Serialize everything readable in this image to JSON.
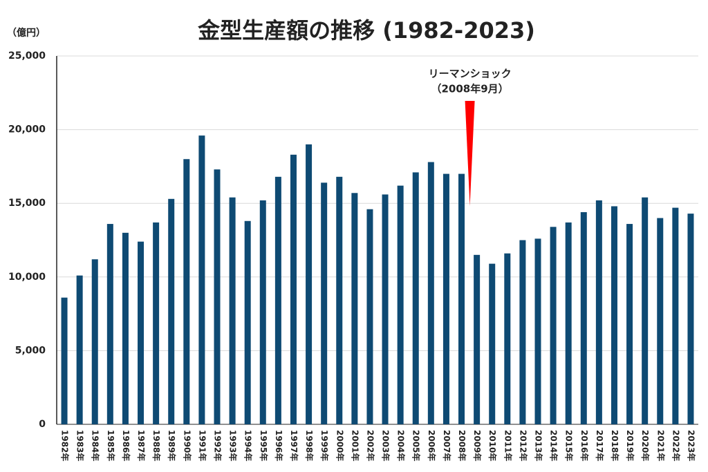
{
  "chart_data": {
    "type": "bar",
    "title": "金型生産額の推移 (1982-2023)",
    "y_label": "（億円）",
    "annotation": [
      "リーマンショック",
      "（2008年9月）"
    ],
    "annotation_color": "#ff0000",
    "categories": [
      "1982年",
      "1983年",
      "1984年",
      "1985年",
      "1986年",
      "1987年",
      "1988年",
      "1989年",
      "1990年",
      "1991年",
      "1992年",
      "1993年",
      "1994年",
      "1995年",
      "1996年",
      "1997年",
      "1998年",
      "1999年",
      "2000年",
      "2001年",
      "2002年",
      "2003年",
      "2004年",
      "2005年",
      "2006年",
      "2007年",
      "2008年",
      "2009年",
      "2010年",
      "2011年",
      "2012年",
      "2013年",
      "2014年",
      "2015年",
      "2016年",
      "2017年",
      "2018年",
      "2019年",
      "2020年",
      "2021年",
      "2022年",
      "2023年"
    ],
    "values": [
      8600,
      10100,
      11200,
      13600,
      13000,
      12400,
      13700,
      15300,
      18000,
      19600,
      17300,
      15400,
      13800,
      15200,
      16800,
      18300,
      19000,
      16400,
      16800,
      15700,
      14600,
      15600,
      16200,
      17100,
      17800,
      17000,
      17000,
      11500,
      10900,
      11600,
      12500,
      12600,
      13400,
      13700,
      14400,
      15200,
      14800,
      13600,
      15400,
      14000,
      14700,
      14300
    ],
    "color": "#0e4a73",
    "ylim": [
      0,
      25000
    ],
    "yticks": [
      0,
      {
        "value": 5000,
        "label": "5,000"
      },
      {
        "value": 10000,
        "label": "10,000"
      },
      {
        "value": 15000,
        "label": "15,000"
      },
      {
        "value": 20000,
        "label": "20,000"
      },
      {
        "value": 25000,
        "label": "25,000"
      }
    ],
    "grid": true
  }
}
